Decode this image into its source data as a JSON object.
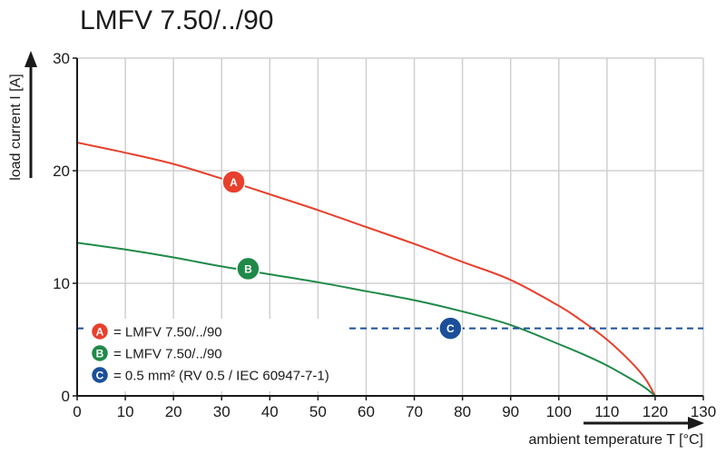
{
  "chart_data": {
    "type": "line",
    "title": "LMFV 7.50/../90",
    "xlabel": "ambient temperature T [°C]",
    "ylabel": "load current I [A]",
    "xlim": [
      0,
      130
    ],
    "ylim": [
      0,
      30
    ],
    "xticks": [
      0,
      10,
      20,
      30,
      40,
      50,
      60,
      70,
      80,
      90,
      100,
      110,
      120,
      130
    ],
    "yticks": [
      0,
      10,
      20,
      30
    ],
    "grid": true,
    "legend_position": "bottom-left",
    "colors": {
      "A": "#e8402d",
      "B": "#1f8a48",
      "C": "#1b4f9a",
      "grid": "#d0d0d0",
      "axis": "#1a1a1a"
    },
    "series": [
      {
        "id": "A",
        "name": "LMFV 7.50/../90",
        "badge": "A",
        "x": [
          0,
          10,
          20,
          30,
          40,
          50,
          60,
          70,
          80,
          90,
          100,
          105,
          110,
          115,
          118,
          120
        ],
        "y": [
          22.5,
          21.6,
          20.6,
          19.3,
          17.9,
          16.5,
          15.0,
          13.5,
          11.9,
          10.3,
          8.0,
          6.6,
          5.0,
          3.0,
          1.5,
          0
        ]
      },
      {
        "id": "B",
        "name": "LMFV 7.50/../90",
        "badge": "B",
        "x": [
          0,
          10,
          20,
          30,
          40,
          50,
          60,
          70,
          80,
          90,
          100,
          105,
          110,
          115,
          118,
          120
        ],
        "y": [
          13.6,
          13.0,
          12.3,
          11.5,
          10.8,
          10.1,
          9.3,
          8.5,
          7.5,
          6.3,
          4.6,
          3.7,
          2.7,
          1.5,
          0.7,
          0
        ]
      },
      {
        "id": "C",
        "name": "0.5 mm² (RV 0.5 / IEC 60947-7-1)",
        "badge": "C",
        "style": "dashed",
        "x": [
          0,
          130
        ],
        "y": [
          6,
          6
        ]
      }
    ],
    "annotations": [
      {
        "series": "A",
        "x": 32.5,
        "y": 19.0
      },
      {
        "series": "B",
        "x": 35.5,
        "y": 11.3
      },
      {
        "series": "C",
        "x": 77.5,
        "y": 6.0
      }
    ]
  }
}
